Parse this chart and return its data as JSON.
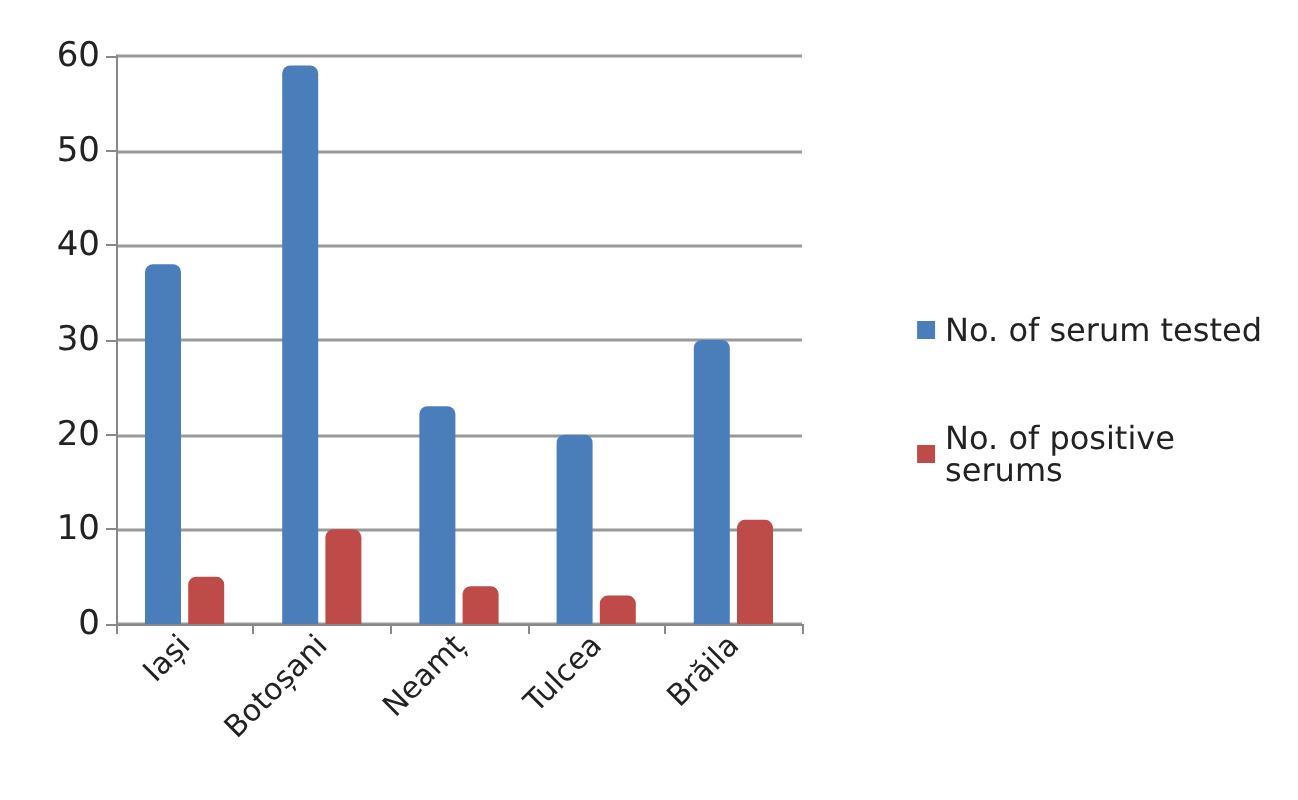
{
  "chart_data": {
    "type": "bar",
    "categories": [
      "Iași",
      "Botoșani",
      "Neamț",
      "Tulcea",
      "Brăila"
    ],
    "series": [
      {
        "name": "No. of serum tested",
        "color": "#4a7ebb",
        "values": [
          38,
          59,
          23,
          20,
          30
        ]
      },
      {
        "name": "No. of positive serums",
        "color": "#be4b48",
        "values": [
          5,
          10,
          4,
          3,
          11
        ]
      }
    ],
    "ylim": [
      0,
      60
    ],
    "yticks": [
      0,
      10,
      20,
      30,
      40,
      50,
      60
    ],
    "grid": "y",
    "legend": "right"
  }
}
